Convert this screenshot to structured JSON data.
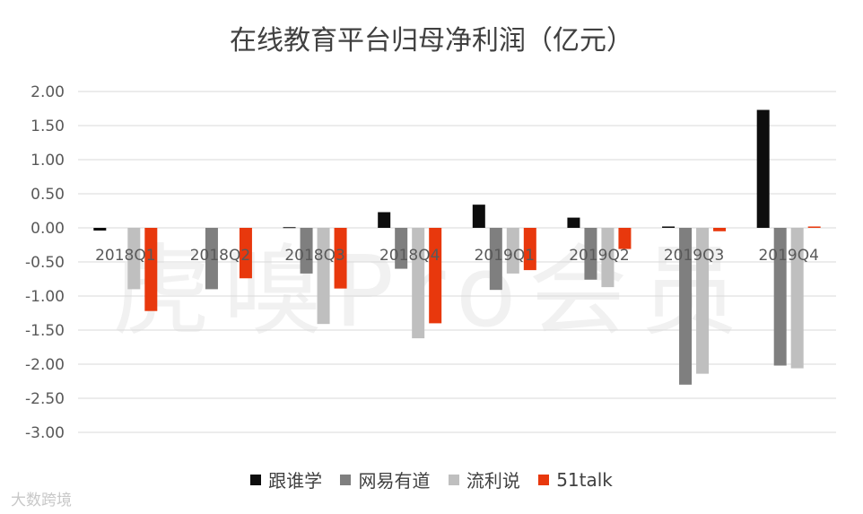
{
  "watermark": "虎嗅Pro会员",
  "source_mark": "大数跨境",
  "chart_data": {
    "type": "bar",
    "title": "在线教育平台归母净利润（亿元）",
    "categories": [
      "2018Q1",
      "2018Q2",
      "2018Q3",
      "2018Q4",
      "2019Q1",
      "2019Q2",
      "2019Q3",
      "2019Q4"
    ],
    "series": [
      {
        "name": "跟谁学",
        "color": "#0d0d0d",
        "values": [
          -0.04,
          null,
          0.01,
          0.23,
          0.34,
          0.15,
          0.02,
          1.73
        ]
      },
      {
        "name": "网易有道",
        "color": "#7f7f7f",
        "values": [
          null,
          -0.9,
          -0.67,
          -0.6,
          -0.91,
          -0.76,
          -2.3,
          -2.02
        ]
      },
      {
        "name": "流利说",
        "color": "#bfbfbf",
        "values": [
          -0.9,
          null,
          -1.41,
          -1.62,
          -0.67,
          -0.87,
          -2.14,
          -2.06
        ]
      },
      {
        "name": "51talk",
        "color": "#e8380d",
        "values": [
          -1.22,
          -0.74,
          -0.89,
          -1.4,
          -0.62,
          -0.31,
          -0.05,
          0.02
        ]
      }
    ],
    "yticks": [
      "2.00",
      "1.50",
      "1.00",
      "0.50",
      "0.00",
      "-0.50",
      "-1.00",
      "-1.50",
      "-2.00",
      "-2.50",
      "-3.00"
    ],
    "ylim": [
      -3,
      2
    ],
    "grid": true,
    "legend_position": "bottom",
    "xlabel": "",
    "ylabel": ""
  }
}
